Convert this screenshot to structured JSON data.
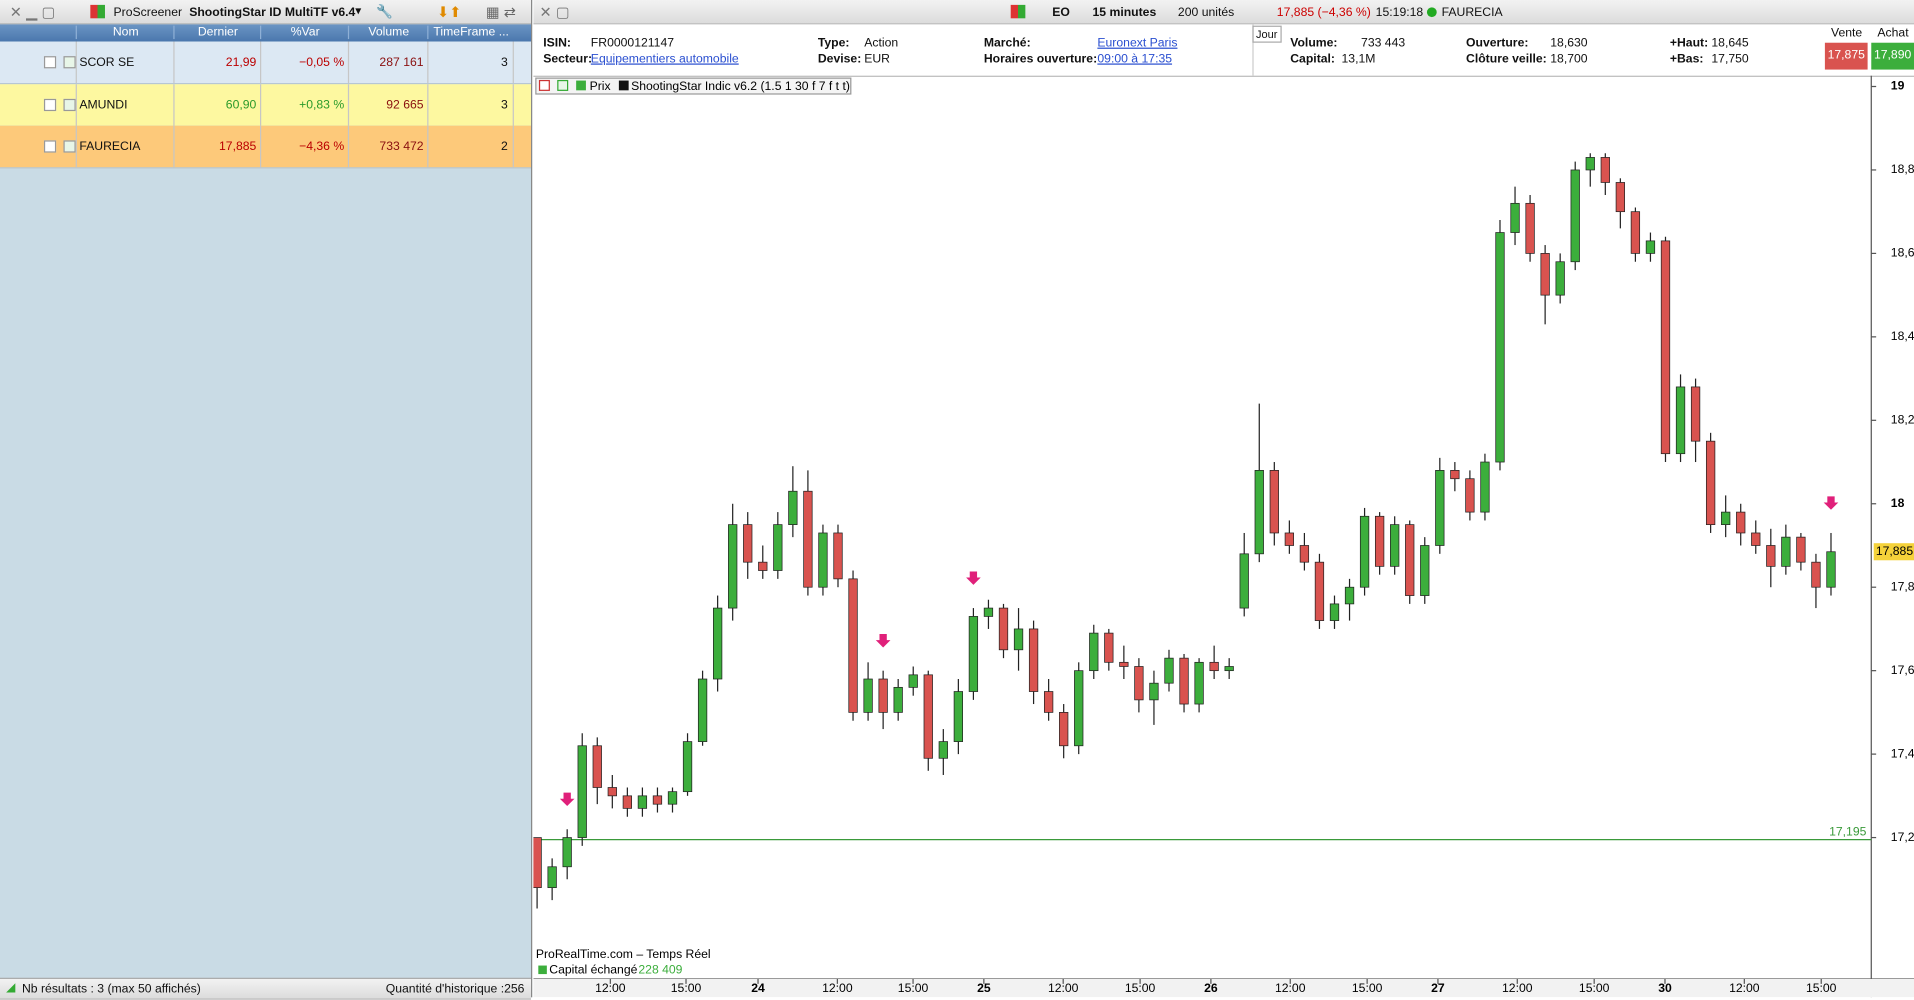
{
  "screener": {
    "title": "ProScreener",
    "name": "ShootingStar ID MultiTF v6.4",
    "columns": [
      "Nom",
      "Dernier",
      "%Var",
      "Volume",
      "TimeFrame ..."
    ],
    "rows": [
      [
        "SCOR SE",
        "21,99",
        "−0,05 %",
        "287 161",
        "3"
      ],
      [
        "AMUNDI",
        "60,90",
        "+0,83 %",
        "92 665",
        "3"
      ],
      [
        "FAURECIA",
        "17,885",
        "−4,36 %",
        "733 472",
        "2"
      ]
    ],
    "status": "Nb résultats : 3 (max 50 affichés)",
    "history": "Quantité d'historique :256"
  },
  "toolbar": {
    "symbol": "EO",
    "period": "15 minutes",
    "units": "200 unités",
    "price": "17,885 (−4,36 %)",
    "time": "15:19:18",
    "name": "FAURECIA"
  },
  "info": {
    "tab": "Jour",
    "fields": [
      {
        "label": "ISIN:",
        "value": "FR0000121147"
      },
      {
        "label": "Secteur:",
        "value": "Equipementiers automobile"
      },
      {
        "label": "Type:",
        "value": "Action"
      },
      {
        "label": "Devise:",
        "value": "EUR"
      },
      {
        "label": "Marché:",
        "value": "Euronext Paris"
      },
      {
        "label": "Horaires ouverture:",
        "value": "09:00 à 17:35"
      },
      {
        "label": "Volume:",
        "value": "733 443"
      },
      {
        "label": "Capital:",
        "value": "13,1M"
      },
      {
        "label": "Ouverture:",
        "value": "18,630"
      },
      {
        "label": "Clôture veille:",
        "value": "18,700"
      },
      {
        "label": "+Haut:",
        "value": "18,645"
      },
      {
        "label": "+Bas:",
        "value": "17,750"
      }
    ],
    "sell_label": "Vente",
    "sell": "17,875",
    "buy_label": "Achat",
    "buy": "17,890"
  },
  "chart_data": {
    "type": "candlestick",
    "legend": [
      "Prix",
      "ShootingStar Indic v6.2 (1.5 1 30 f 7 f t t)"
    ],
    "source": "ProRealTime.com – Temps Réel",
    "volume_label": "Capital échangé",
    "volume_value": "228 409",
    "up_color": "#3cae3c",
    "down_color": "#d9534f",
    "ylim": [
      16.905,
      19.023
    ],
    "yticks": [
      {
        "value": 17.2,
        "label": "17,2"
      },
      {
        "value": 17.4,
        "label": "17,4"
      },
      {
        "value": 17.6,
        "label": "17,6"
      },
      {
        "value": 17.8,
        "label": "17,8"
      },
      18,
      {
        "value": 18.2,
        "label": "18,2"
      },
      {
        "value": 18.4,
        "label": "18,4"
      },
      {
        "value": 18.6,
        "label": "18,6"
      },
      {
        "value": 18.8,
        "label": "18,8"
      },
      19
    ],
    "x_labels": [
      "12:00",
      "15:00",
      "24",
      "12:00",
      "15:00",
      "25",
      "12:00",
      "15:00",
      "26",
      "12:00",
      "15:00",
      "27",
      "12:00",
      "15:00",
      "30",
      "12:00",
      "15:00"
    ],
    "level": {
      "value": 17.195,
      "label": "17,195",
      "color": "#3a9a3a"
    },
    "last": {
      "value": 17.885,
      "label": "17,885"
    },
    "candles": [
      [
        17.2,
        17.2,
        17.03,
        17.08
      ],
      [
        17.08,
        17.15,
        17.05,
        17.13
      ],
      [
        17.13,
        17.22,
        17.1,
        17.2
      ],
      [
        17.2,
        17.45,
        17.18,
        17.42
      ],
      [
        17.42,
        17.44,
        17.28,
        17.32
      ],
      [
        17.32,
        17.35,
        17.27,
        17.3
      ],
      [
        17.3,
        17.32,
        17.25,
        17.27
      ],
      [
        17.27,
        17.32,
        17.25,
        17.3
      ],
      [
        17.3,
        17.32,
        17.26,
        17.28
      ],
      [
        17.28,
        17.32,
        17.26,
        17.31
      ],
      [
        17.31,
        17.45,
        17.3,
        17.43
      ],
      [
        17.43,
        17.6,
        17.42,
        17.58
      ],
      [
        17.58,
        17.78,
        17.55,
        17.75
      ],
      [
        17.75,
        18.0,
        17.72,
        17.95
      ],
      [
        17.95,
        17.98,
        17.82,
        17.86
      ],
      [
        17.86,
        17.9,
        17.82,
        17.84
      ],
      [
        17.84,
        17.98,
        17.82,
        17.95
      ],
      [
        17.95,
        18.09,
        17.92,
        18.03
      ],
      [
        18.03,
        18.08,
        17.78,
        17.8
      ],
      [
        17.8,
        17.95,
        17.78,
        17.93
      ],
      [
        17.93,
        17.95,
        17.8,
        17.82
      ],
      [
        17.82,
        17.84,
        17.48,
        17.5
      ],
      [
        17.5,
        17.62,
        17.48,
        17.58
      ],
      [
        17.58,
        17.6,
        17.46,
        17.5
      ],
      [
        17.5,
        17.58,
        17.48,
        17.56
      ],
      [
        17.56,
        17.61,
        17.54,
        17.59
      ],
      [
        17.59,
        17.6,
        17.36,
        17.39
      ],
      [
        17.39,
        17.46,
        17.35,
        17.43
      ],
      [
        17.43,
        17.58,
        17.4,
        17.55
      ],
      [
        17.55,
        17.75,
        17.53,
        17.73
      ],
      [
        17.73,
        17.77,
        17.7,
        17.75
      ],
      [
        17.75,
        17.76,
        17.63,
        17.65
      ],
      [
        17.65,
        17.75,
        17.6,
        17.7
      ],
      [
        17.7,
        17.72,
        17.52,
        17.55
      ],
      [
        17.55,
        17.58,
        17.48,
        17.5
      ],
      [
        17.5,
        17.52,
        17.39,
        17.42
      ],
      [
        17.42,
        17.62,
        17.4,
        17.6
      ],
      [
        17.6,
        17.71,
        17.58,
        17.69
      ],
      [
        17.69,
        17.7,
        17.6,
        17.62
      ],
      [
        17.62,
        17.66,
        17.58,
        17.61
      ],
      [
        17.61,
        17.63,
        17.5,
        17.53
      ],
      [
        17.53,
        17.6,
        17.47,
        17.57
      ],
      [
        17.57,
        17.65,
        17.55,
        17.63
      ],
      [
        17.63,
        17.64,
        17.5,
        17.52
      ],
      [
        17.52,
        17.63,
        17.5,
        17.62
      ],
      [
        17.62,
        17.66,
        17.58,
        17.6
      ],
      [
        17.6,
        17.63,
        17.58,
        17.61
      ],
      [
        17.75,
        17.93,
        17.73,
        17.88
      ],
      [
        17.88,
        18.24,
        17.86,
        18.08
      ],
      [
        18.08,
        18.1,
        17.9,
        17.93
      ],
      [
        17.93,
        17.96,
        17.88,
        17.9
      ],
      [
        17.9,
        17.93,
        17.84,
        17.86
      ],
      [
        17.86,
        17.88,
        17.7,
        17.72
      ],
      [
        17.72,
        17.78,
        17.7,
        17.76
      ],
      [
        17.76,
        17.82,
        17.72,
        17.8
      ],
      [
        17.8,
        17.99,
        17.78,
        17.97
      ],
      [
        17.97,
        17.98,
        17.83,
        17.85
      ],
      [
        17.85,
        17.97,
        17.83,
        17.95
      ],
      [
        17.95,
        17.96,
        17.76,
        17.78
      ],
      [
        17.78,
        17.92,
        17.76,
        17.9
      ],
      [
        17.9,
        18.11,
        17.88,
        18.08
      ],
      [
        18.08,
        18.1,
        18.03,
        18.06
      ],
      [
        18.06,
        18.08,
        17.96,
        17.98
      ],
      [
        17.98,
        18.12,
        17.96,
        18.1
      ],
      [
        18.1,
        18.68,
        18.08,
        18.65
      ],
      [
        18.65,
        18.76,
        18.62,
        18.72
      ],
      [
        18.72,
        18.74,
        18.58,
        18.6
      ],
      [
        18.6,
        18.62,
        18.43,
        18.5
      ],
      [
        18.5,
        18.6,
        18.48,
        18.58
      ],
      [
        18.58,
        18.82,
        18.56,
        18.8
      ],
      [
        18.8,
        18.84,
        18.76,
        18.83
      ],
      [
        18.83,
        18.84,
        18.74,
        18.77
      ],
      [
        18.77,
        18.78,
        18.66,
        18.7
      ],
      [
        18.7,
        18.71,
        18.58,
        18.6
      ],
      [
        18.6,
        18.65,
        18.58,
        18.63
      ],
      [
        18.63,
        18.64,
        18.1,
        18.12
      ],
      [
        18.12,
        18.31,
        18.1,
        18.28
      ],
      [
        18.28,
        18.3,
        18.1,
        18.15
      ],
      [
        18.15,
        18.17,
        17.93,
        17.95
      ],
      [
        17.95,
        18.02,
        17.92,
        17.98
      ],
      [
        17.98,
        18.0,
        17.9,
        17.93
      ],
      [
        17.93,
        17.96,
        17.88,
        17.9
      ],
      [
        17.9,
        17.94,
        17.8,
        17.85
      ],
      [
        17.85,
        17.95,
        17.83,
        17.92
      ],
      [
        17.92,
        17.93,
        17.84,
        17.86
      ],
      [
        17.86,
        17.88,
        17.75,
        17.8
      ],
      [
        17.8,
        17.93,
        17.78,
        17.885
      ]
    ]
  }
}
